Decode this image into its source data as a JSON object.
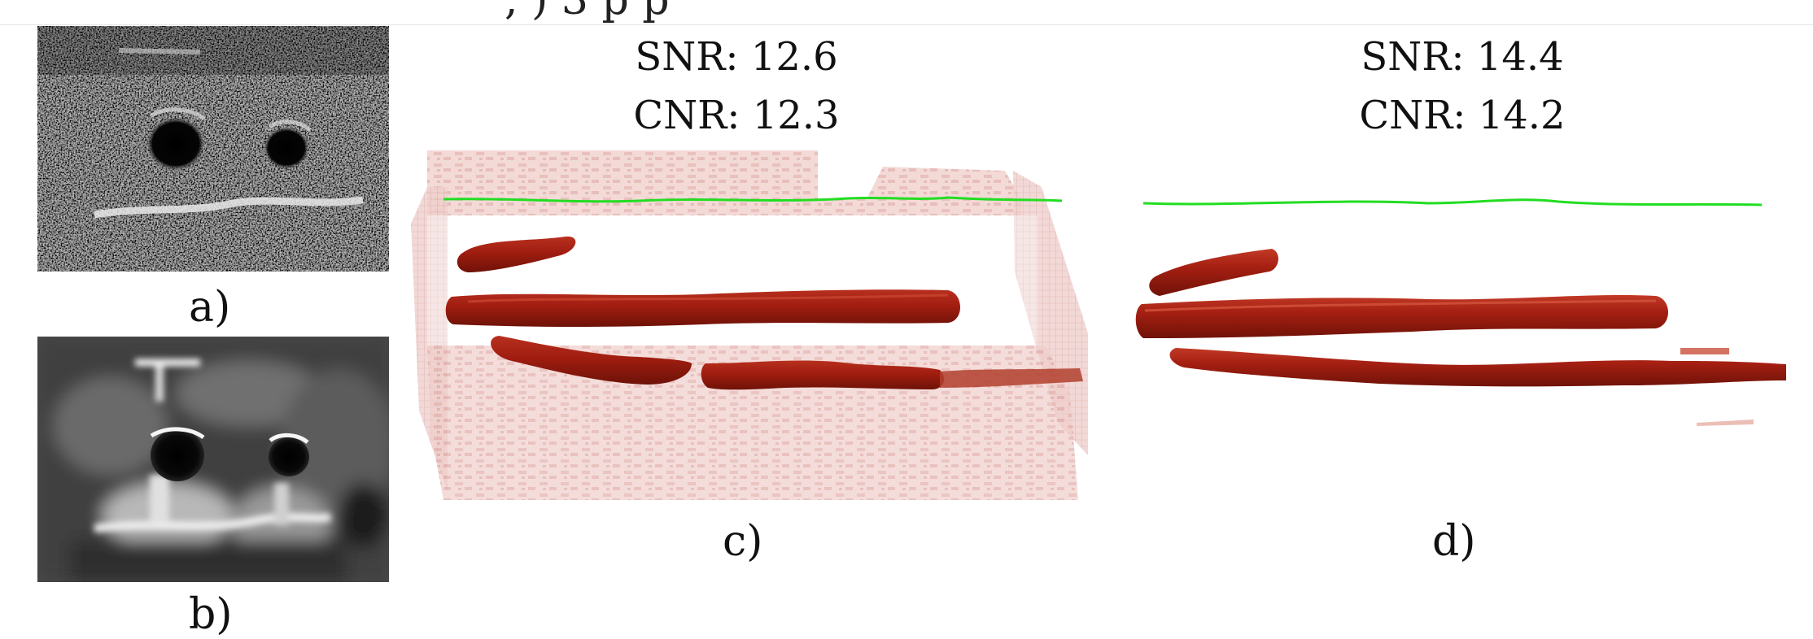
{
  "figure": {
    "top_fragment": ", ) 3          p  p",
    "panels": {
      "a": {
        "label": "a)"
      },
      "b": {
        "label": "b)"
      },
      "c": {
        "label": "c)",
        "snr": "SNR: 12.6",
        "cnr": "CNR: 12.3"
      },
      "d": {
        "label": "d)",
        "snr": "SNR: 14.4",
        "cnr": "CNR: 14.2"
      }
    }
  },
  "colors": {
    "vessel": "#a11e12",
    "vessel_dark": "#7a1208",
    "vessel_highlight": "#c8452f",
    "tissue": "#e2a8a2",
    "surface_line": "#22dd22"
  }
}
